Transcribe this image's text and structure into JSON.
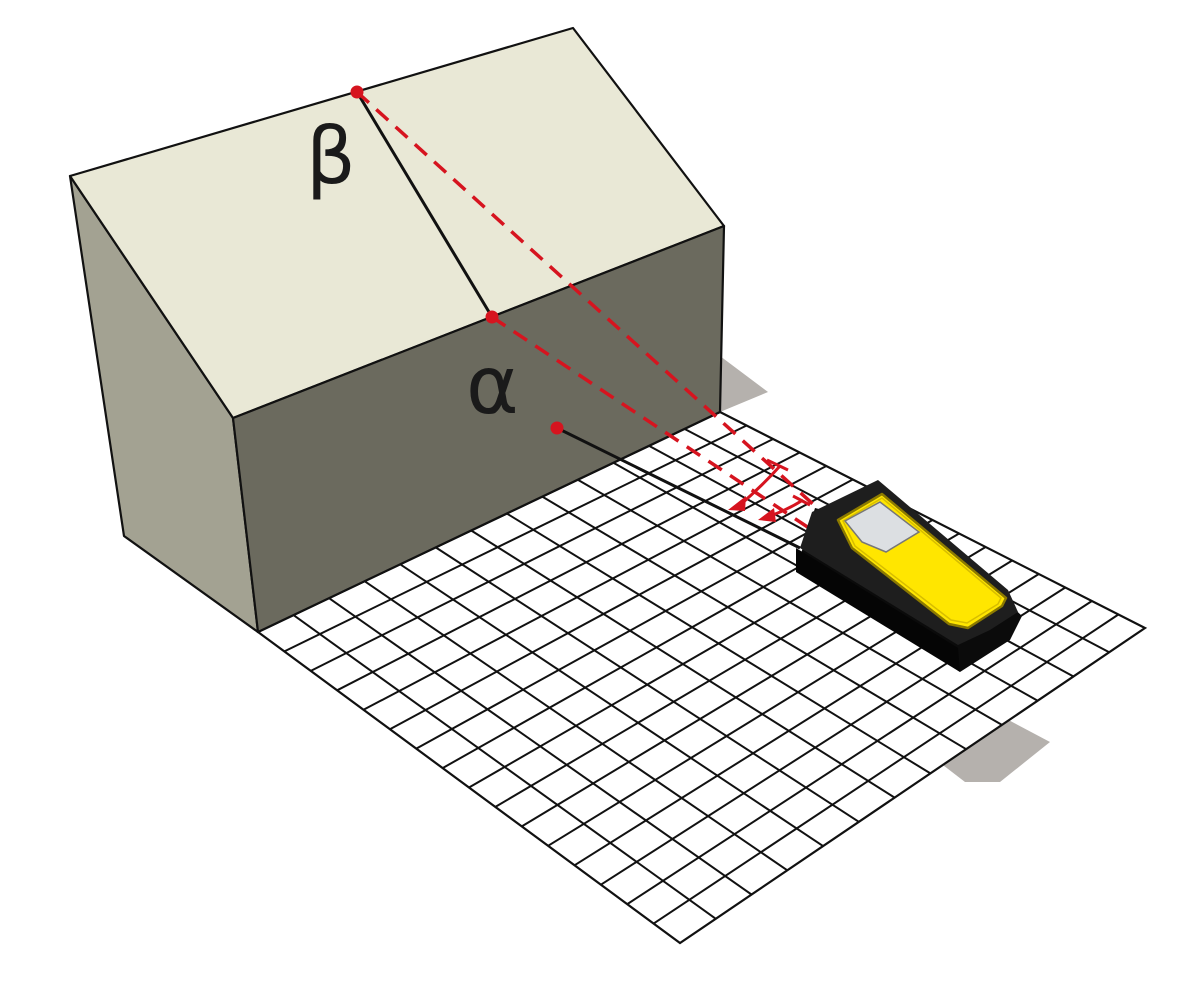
{
  "labels": {
    "beta": "β",
    "alpha": "α"
  },
  "colors": {
    "roof_top": "#e9e8d6",
    "gable_side": "#a3a292",
    "front_wall": "#6b6a5e",
    "ground_grid": "#ffffff",
    "grid_lines": "#111111",
    "shadow": "#b5b1ad",
    "measure_lines": "#d6141f",
    "device_body": "#141414",
    "device_panel": "#ffe600",
    "device_screen": "#dcdfe2"
  },
  "icons": {
    "device": "laser-distance-meter-icon"
  }
}
